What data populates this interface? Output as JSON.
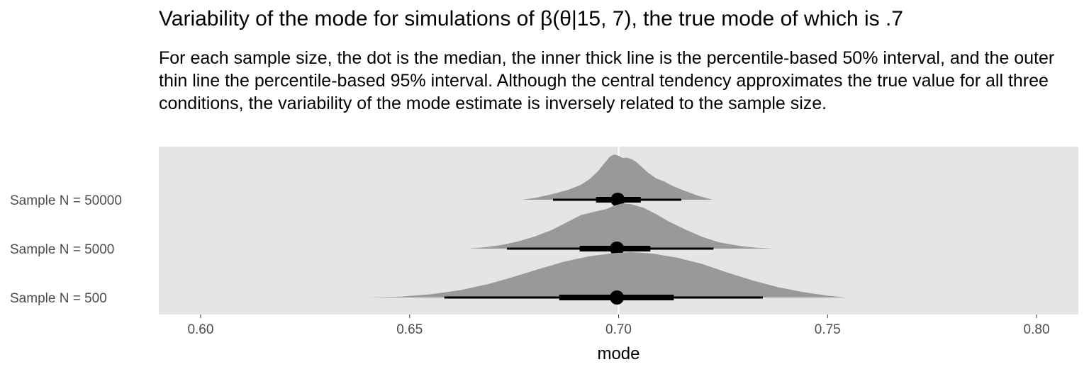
{
  "chart_data": {
    "type": "halfeye",
    "title": "Variability of the mode for simulations of β(θ|15, 7), the true mode of which is .7",
    "subtitle": "For each sample size, the dot is the median, the inner thick line is the percentile-based 50% interval, and the outer thin line the percentile-based 95% interval. Although the central tendency approximates the true value for all three conditions, the variability of the mode estimate is inversely related to the sample size.",
    "xlabel": "mode",
    "ylabel": "",
    "xlim": [
      0.59,
      0.81
    ],
    "x_ticks": [
      0.6,
      0.65,
      0.7,
      0.75,
      0.8
    ],
    "x_tick_labels": [
      "0.60",
      "0.65",
      "0.70",
      "0.75",
      "0.80"
    ],
    "reference_line_x": 0.7,
    "panel_background": "#e5e5e5",
    "density_color": "#999999",
    "interval_color": "#000000",
    "grid": false,
    "series": [
      {
        "name": "Sample N = 50000",
        "median": 0.6998,
        "interval_50": [
          0.6946,
          0.7053
        ],
        "interval_95": [
          0.6843,
          0.715
        ],
        "density_range": [
          0.677,
          0.7225
        ],
        "density": [
          [
            0.677,
            0.0
          ],
          [
            0.68,
            0.04
          ],
          [
            0.684,
            0.12
          ],
          [
            0.688,
            0.22
          ],
          [
            0.691,
            0.33
          ],
          [
            0.693,
            0.45
          ],
          [
            0.695,
            0.62
          ],
          [
            0.697,
            0.85
          ],
          [
            0.698,
            0.96
          ],
          [
            0.699,
            1.0
          ],
          [
            0.7,
            0.97
          ],
          [
            0.701,
            0.92
          ],
          [
            0.702,
            0.93
          ],
          [
            0.703,
            0.9
          ],
          [
            0.704,
            0.85
          ],
          [
            0.705,
            0.77
          ],
          [
            0.707,
            0.6
          ],
          [
            0.709,
            0.47
          ],
          [
            0.711,
            0.4
          ],
          [
            0.713,
            0.3
          ],
          [
            0.716,
            0.19
          ],
          [
            0.719,
            0.09
          ],
          [
            0.7225,
            0.0
          ]
        ]
      },
      {
        "name": "Sample N = 5000",
        "median": 0.6996,
        "interval_50": [
          0.6907,
          0.7076
        ],
        "interval_95": [
          0.6733,
          0.7227
        ],
        "density_range": [
          0.664,
          0.737
        ],
        "density": [
          [
            0.664,
            0.0
          ],
          [
            0.668,
            0.03
          ],
          [
            0.672,
            0.08
          ],
          [
            0.676,
            0.16
          ],
          [
            0.68,
            0.27
          ],
          [
            0.684,
            0.41
          ],
          [
            0.688,
            0.6
          ],
          [
            0.691,
            0.74
          ],
          [
            0.694,
            0.81
          ],
          [
            0.697,
            0.87
          ],
          [
            0.699,
            0.95
          ],
          [
            0.701,
            1.0
          ],
          [
            0.703,
            0.98
          ],
          [
            0.706,
            0.9
          ],
          [
            0.709,
            0.76
          ],
          [
            0.712,
            0.6
          ],
          [
            0.716,
            0.42
          ],
          [
            0.72,
            0.26
          ],
          [
            0.724,
            0.14
          ],
          [
            0.729,
            0.06
          ],
          [
            0.733,
            0.02
          ],
          [
            0.737,
            0.0
          ]
        ]
      },
      {
        "name": "Sample N = 500",
        "median": 0.6996,
        "interval_50": [
          0.6858,
          0.7132
        ],
        "interval_95": [
          0.6583,
          0.7345
        ],
        "density_range": [
          0.64,
          0.7545
        ],
        "density": [
          [
            0.64,
            0.0
          ],
          [
            0.648,
            0.02
          ],
          [
            0.655,
            0.07
          ],
          [
            0.662,
            0.16
          ],
          [
            0.669,
            0.3
          ],
          [
            0.675,
            0.46
          ],
          [
            0.681,
            0.63
          ],
          [
            0.687,
            0.79
          ],
          [
            0.693,
            0.91
          ],
          [
            0.699,
            0.98
          ],
          [
            0.703,
            1.0
          ],
          [
            0.708,
            0.97
          ],
          [
            0.714,
            0.88
          ],
          [
            0.72,
            0.74
          ],
          [
            0.726,
            0.55
          ],
          [
            0.732,
            0.38
          ],
          [
            0.738,
            0.23
          ],
          [
            0.744,
            0.12
          ],
          [
            0.75,
            0.04
          ],
          [
            0.7545,
            0.0
          ]
        ]
      }
    ]
  }
}
